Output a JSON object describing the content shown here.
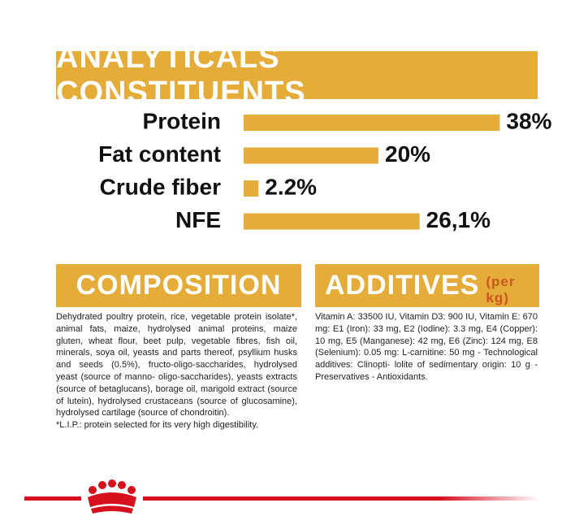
{
  "chart_data": {
    "type": "bar",
    "title": "ANALYTICALS CONSTITUENTS",
    "categories": [
      "Protein",
      "Fat content",
      "Crude fiber",
      "NFE"
    ],
    "values": [
      38,
      20,
      2.2,
      26.1
    ],
    "value_labels": [
      "38%",
      "20%",
      "2.2%",
      "26,1%"
    ],
    "color": "#e5ac3a"
  },
  "composition": {
    "title": "COMPOSITION",
    "text": "Dehydrated poultry protein, rice, vegetable protein isolate*, animal fats, maize, hydrolysed animal proteins, maize gluten, wheat flour, beet pulp, vegetable fibres, fish oil, minerals, soya oil, yeasts and parts thereof, psyllium husks and seeds (0.5%), fructo-oligo-saccharides, hydrolysed yeast (source of manno- oligo-saccharides), yeasts extracts (source of betaglucans), borage oil, marigold extract (source of lutein), hydrolysed crustaceans (source of glucosamine), hydrolysed cartilage (source of chondroitin).",
    "note": "*L.I.P.: protein selected for its very high digestibility."
  },
  "additives": {
    "title": "ADDITIVES",
    "unit": "(per kg)",
    "text": "Vitamin A: 33500 IU, Vitamin D3: 900 IU, Vitamin E: 670 mg: E1 (Iron): 33 mg, E2 (Iodine): 3.3 mg, E4 (Copper): 10 mg, E5 (Manganese): 42 mg, E6 (Zinc): 124 mg, E8 (Selenium): 0.05 mg: L-carnitine: 50 mg - Technological additives: Clinopti- lolite of sedimentary origin: 10 g - Preservatives - Antioxidants."
  }
}
